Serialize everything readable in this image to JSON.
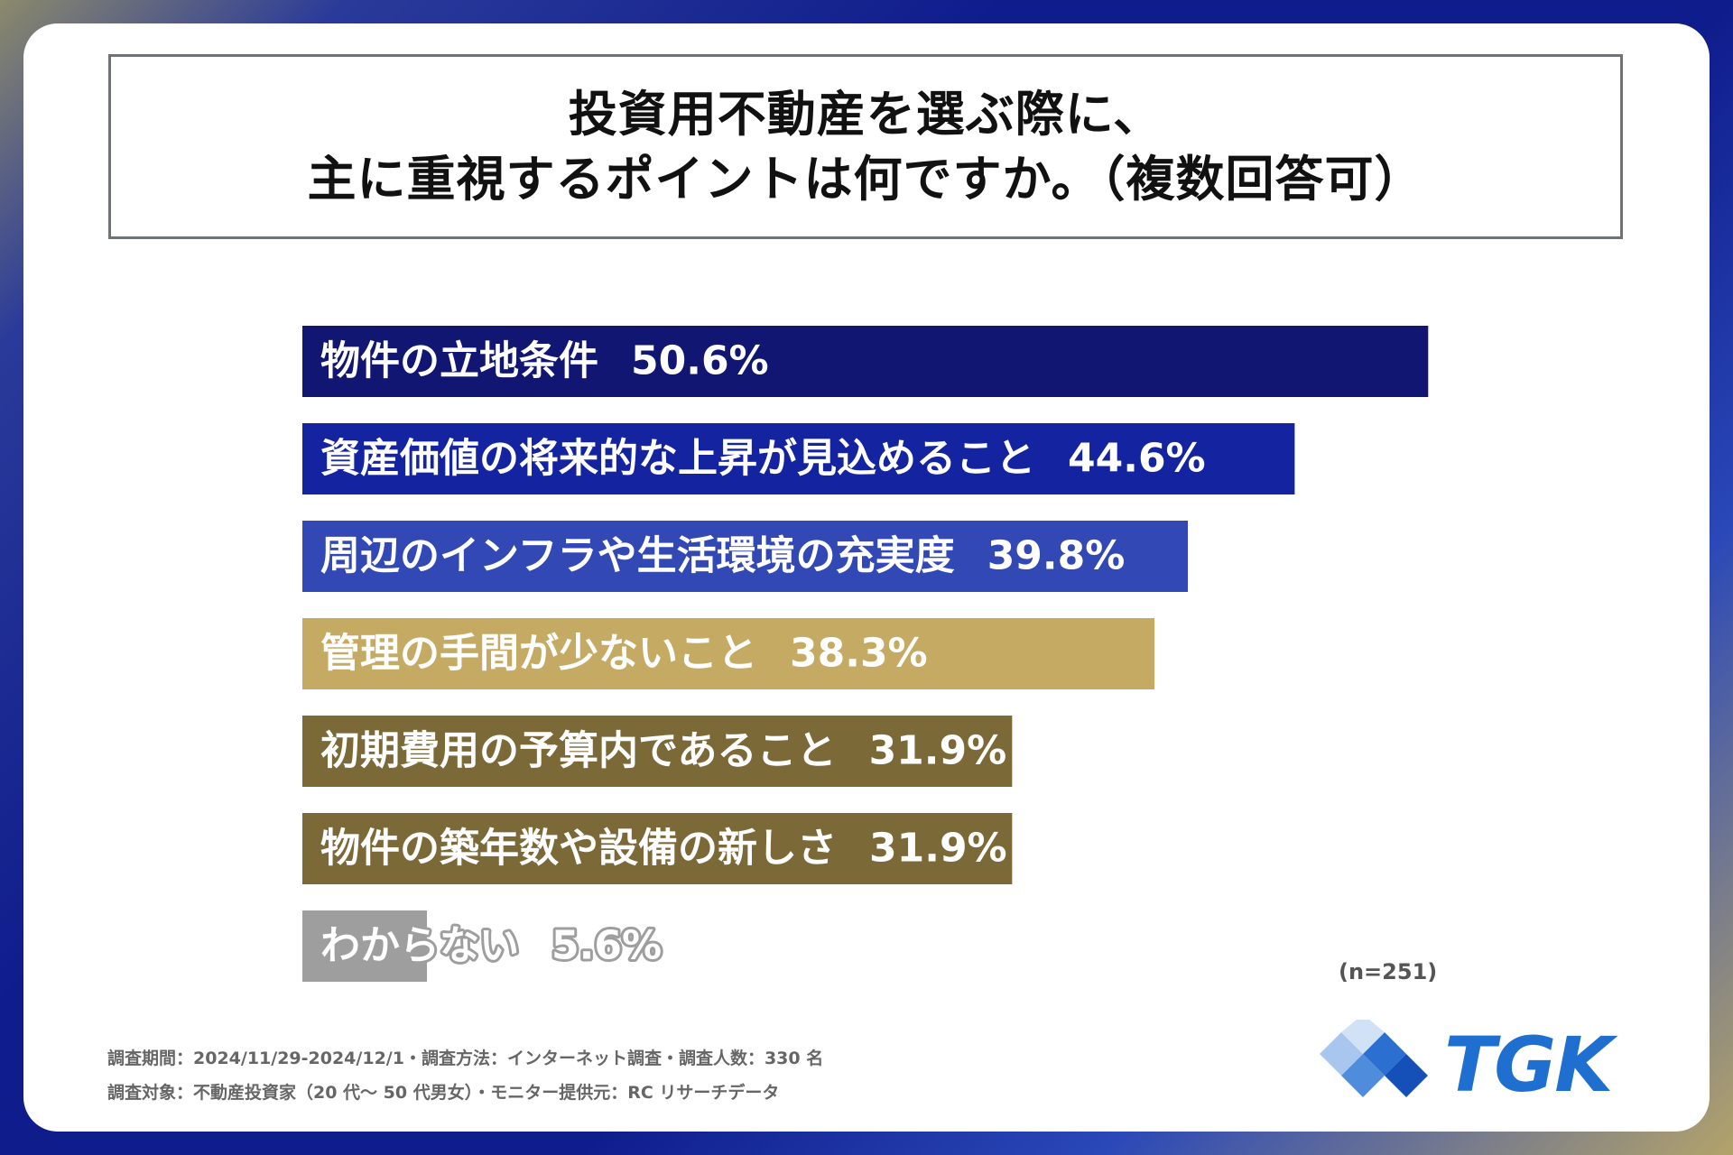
{
  "title": {
    "line1": "投資用不動産を選ぶ際に、",
    "line2": "主に重視するポイントは何ですか。（複数回答可）"
  },
  "chart_data": {
    "type": "bar",
    "orientation": "horizontal",
    "categories": [
      "物件の立地条件",
      "資産価値の将来的な上昇が見込めること",
      "周辺のインフラや生活環境の充実度",
      "管理の手間が少ないこと",
      "初期費用の予算内であること",
      "物件の築年数や設備の新しさ",
      "わからない"
    ],
    "value_labels": [
      "50.6%",
      "44.6%",
      "39.8%",
      "38.3%",
      "31.9%",
      "31.9%",
      "5.6%"
    ],
    "values": [
      50.6,
      44.6,
      39.8,
      38.3,
      31.9,
      31.9,
      5.6
    ],
    "colors": [
      "#111672",
      "#1424a0",
      "#3248b4",
      "#c4aa63",
      "#7b6938",
      "#7b6938",
      "#9e9e9e"
    ],
    "title": "",
    "xlabel": "",
    "ylabel": "",
    "grid": false,
    "legend": "none"
  },
  "note": "(n=251)",
  "footer": {
    "line1": "調査期間：2024/11/29-2024/12/1・調査方法：インターネット調査・調査人数：330 名",
    "line2": "調査対象：不動産投資家（20 代～ 50 代男女）・モニター提供元：RC リサーチデータ"
  },
  "logo": {
    "text": "TGK",
    "color": "#1f6fd0"
  }
}
